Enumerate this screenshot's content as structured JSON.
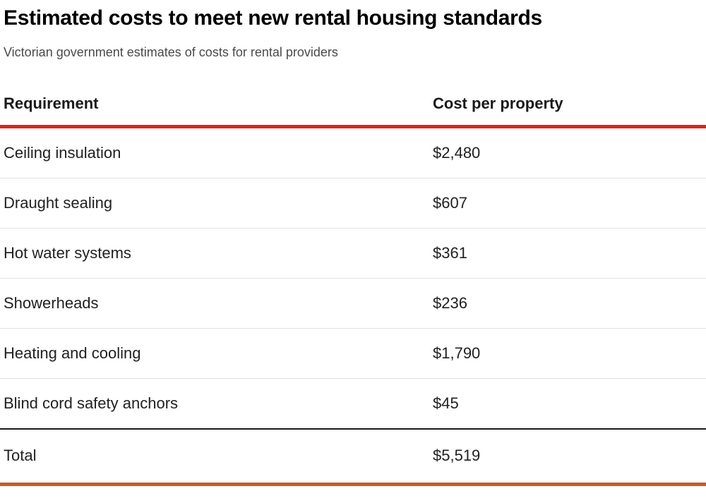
{
  "header": {
    "title": "Estimated costs to meet new rental housing standards",
    "subtitle": "Victorian government estimates of costs for rental providers"
  },
  "table": {
    "columns": [
      {
        "label": "Requirement"
      },
      {
        "label": "Cost per property"
      }
    ],
    "rows": [
      {
        "requirement": "Ceiling insulation",
        "cost": "$2,480"
      },
      {
        "requirement": "Draught sealing",
        "cost": "$607"
      },
      {
        "requirement": "Hot water systems",
        "cost": "$361"
      },
      {
        "requirement": "Showerheads",
        "cost": "$236"
      },
      {
        "requirement": "Heating and cooling",
        "cost": "$1,790"
      },
      {
        "requirement": "Blind cord safety anchors",
        "cost": "$45"
      }
    ],
    "total": {
      "label": "Total",
      "cost": "$5,519"
    }
  },
  "colors": {
    "header_rule": "#d7261d",
    "total_rule": "#c95a2b",
    "total_top_rule": "#1a1a1a",
    "row_divider": "#e2e2e2",
    "text": "#212121",
    "subtitle_text": "#4a4a4a"
  },
  "chart_data": {
    "type": "table",
    "title": "Estimated costs to meet new rental housing standards",
    "subtitle": "Victorian government estimates of costs for rental providers",
    "columns": [
      "Requirement",
      "Cost per property"
    ],
    "rows": [
      [
        "Ceiling insulation",
        2480
      ],
      [
        "Draught sealing",
        607
      ],
      [
        "Hot water systems",
        361
      ],
      [
        "Showerheads",
        236
      ],
      [
        "Heating and cooling",
        1790
      ],
      [
        "Blind cord safety anchors",
        45
      ]
    ],
    "total_row": [
      "Total",
      5519
    ],
    "unit": "$",
    "layout_hints": {
      "header_rule_color": "#d7261d",
      "bottom_rule_color": "#c95a2b",
      "column_alignment": [
        "left",
        "left"
      ]
    }
  }
}
